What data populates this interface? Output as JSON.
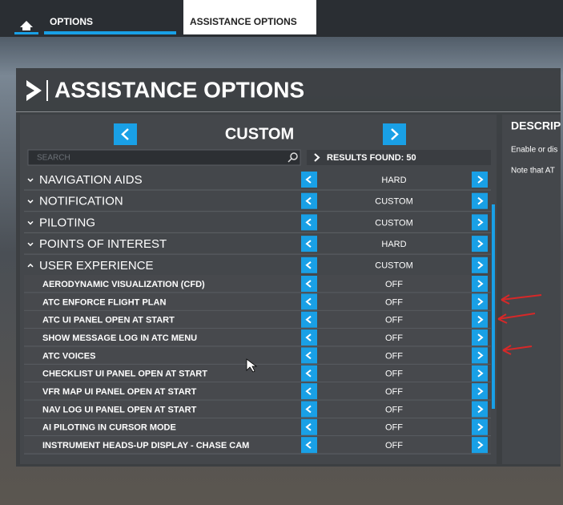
{
  "tabs": {
    "options": "OPTIONS",
    "active": "ASSISTANCE OPTIONS"
  },
  "header": {
    "title": "ASSISTANCE OPTIONS"
  },
  "preset": {
    "name": "CUSTOM"
  },
  "search": {
    "placeholder": "SEARCH",
    "results": "RESULTS FOUND: 50"
  },
  "categories": [
    {
      "label": "NAVIGATION AIDS",
      "value": "HARD"
    },
    {
      "label": "NOTIFICATION",
      "value": "CUSTOM"
    },
    {
      "label": "PILOTING",
      "value": "CUSTOM"
    },
    {
      "label": "POINTS OF INTEREST",
      "value": "HARD"
    },
    {
      "label": "USER EXPERIENCE",
      "value": "CUSTOM"
    }
  ],
  "settings": [
    {
      "label": "AERODYNAMIC VISUALIZATION (CFD)",
      "value": "OFF"
    },
    {
      "label": "ATC ENFORCE FLIGHT PLAN",
      "value": "OFF"
    },
    {
      "label": "ATC UI PANEL OPEN AT START",
      "value": "OFF"
    },
    {
      "label": "SHOW MESSAGE LOG IN ATC MENU",
      "value": "OFF"
    },
    {
      "label": "ATC VOICES",
      "value": "OFF"
    },
    {
      "label": "CHECKLIST UI PANEL OPEN AT START",
      "value": "OFF"
    },
    {
      "label": "VFR MAP UI PANEL OPEN AT START",
      "value": "OFF"
    },
    {
      "label": "NAV LOG UI PANEL OPEN AT START",
      "value": "OFF"
    },
    {
      "label": "AI PILOTING IN CURSOR MODE",
      "value": "OFF"
    },
    {
      "label": "INSTRUMENT HEADS-UP DISPLAY - CHASE CAM",
      "value": "OFF"
    }
  ],
  "description": {
    "title": "DESCRIP",
    "line1": "Enable or dis",
    "line2": "Note that AT"
  }
}
